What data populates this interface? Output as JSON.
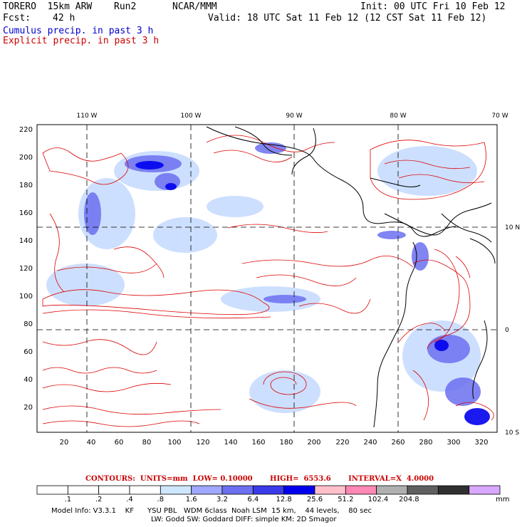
{
  "header": {
    "model": "TORERO  15km ARW",
    "run": "Run2",
    "org": "NCAR/MMM",
    "init": "Init: 00 UTC Fri 10 Feb 12",
    "fcst_label": "Fcst:",
    "fcst_value": "42 h",
    "valid": "Valid: 18 UTC Sat 11 Feb 12 (12 CST Sat 11 Feb 12)",
    "cumulus": "Cumulus precip. in past 3 h",
    "explicit": "Explicit precip. in past 3 h"
  },
  "map": {
    "lon_labels": [
      "110 W",
      "100 W",
      "90 W",
      "80 W",
      "70 W"
    ],
    "lat_labels": [
      "10 N",
      "0",
      "10 S"
    ],
    "y_ticks": [
      "220",
      "200",
      "180",
      "160",
      "140",
      "120",
      "100",
      "80",
      "60",
      "40",
      "20"
    ],
    "x_ticks": [
      "20",
      "40",
      "60",
      "80",
      "100",
      "120",
      "140",
      "160",
      "180",
      "200",
      "220",
      "240",
      "260",
      "280",
      "300",
      "320"
    ],
    "contour_color": "#dd0000",
    "precip_color": "#4444ee"
  },
  "contours_info": {
    "text": "CONTOURS:  UNITS=mm  LOW= 0.10000       HIGH=  6553.6       INTERVAL=X  4.0000"
  },
  "colorbar": {
    "labels": [
      ".1",
      ".2",
      ".4",
      ".8",
      "1.6",
      "3.2",
      "6.4",
      "12.8",
      "25.6",
      "51.2",
      "102.4",
      "204.8"
    ],
    "colors": [
      "#ffffff",
      "#ffffff",
      "#ffffff",
      "#ffffff",
      "#cfe6ff",
      "#a0a8ff",
      "#6c70f0",
      "#3a3ae8",
      "#0000ee",
      "#ffc0cc",
      "#ff88b4",
      "#b0b0b0",
      "#606060",
      "#303030",
      "#d8a8ff"
    ],
    "unit": "mm"
  },
  "model_info": {
    "line1": "Model Info: V3.3.1    KF      YSU PBL   WDM 6class  Noah LSM  15 km,    44 levels,    80 sec",
    "line2": "LW: Godd SW: Goddard DIFF: simple KM: 2D Smagor"
  }
}
